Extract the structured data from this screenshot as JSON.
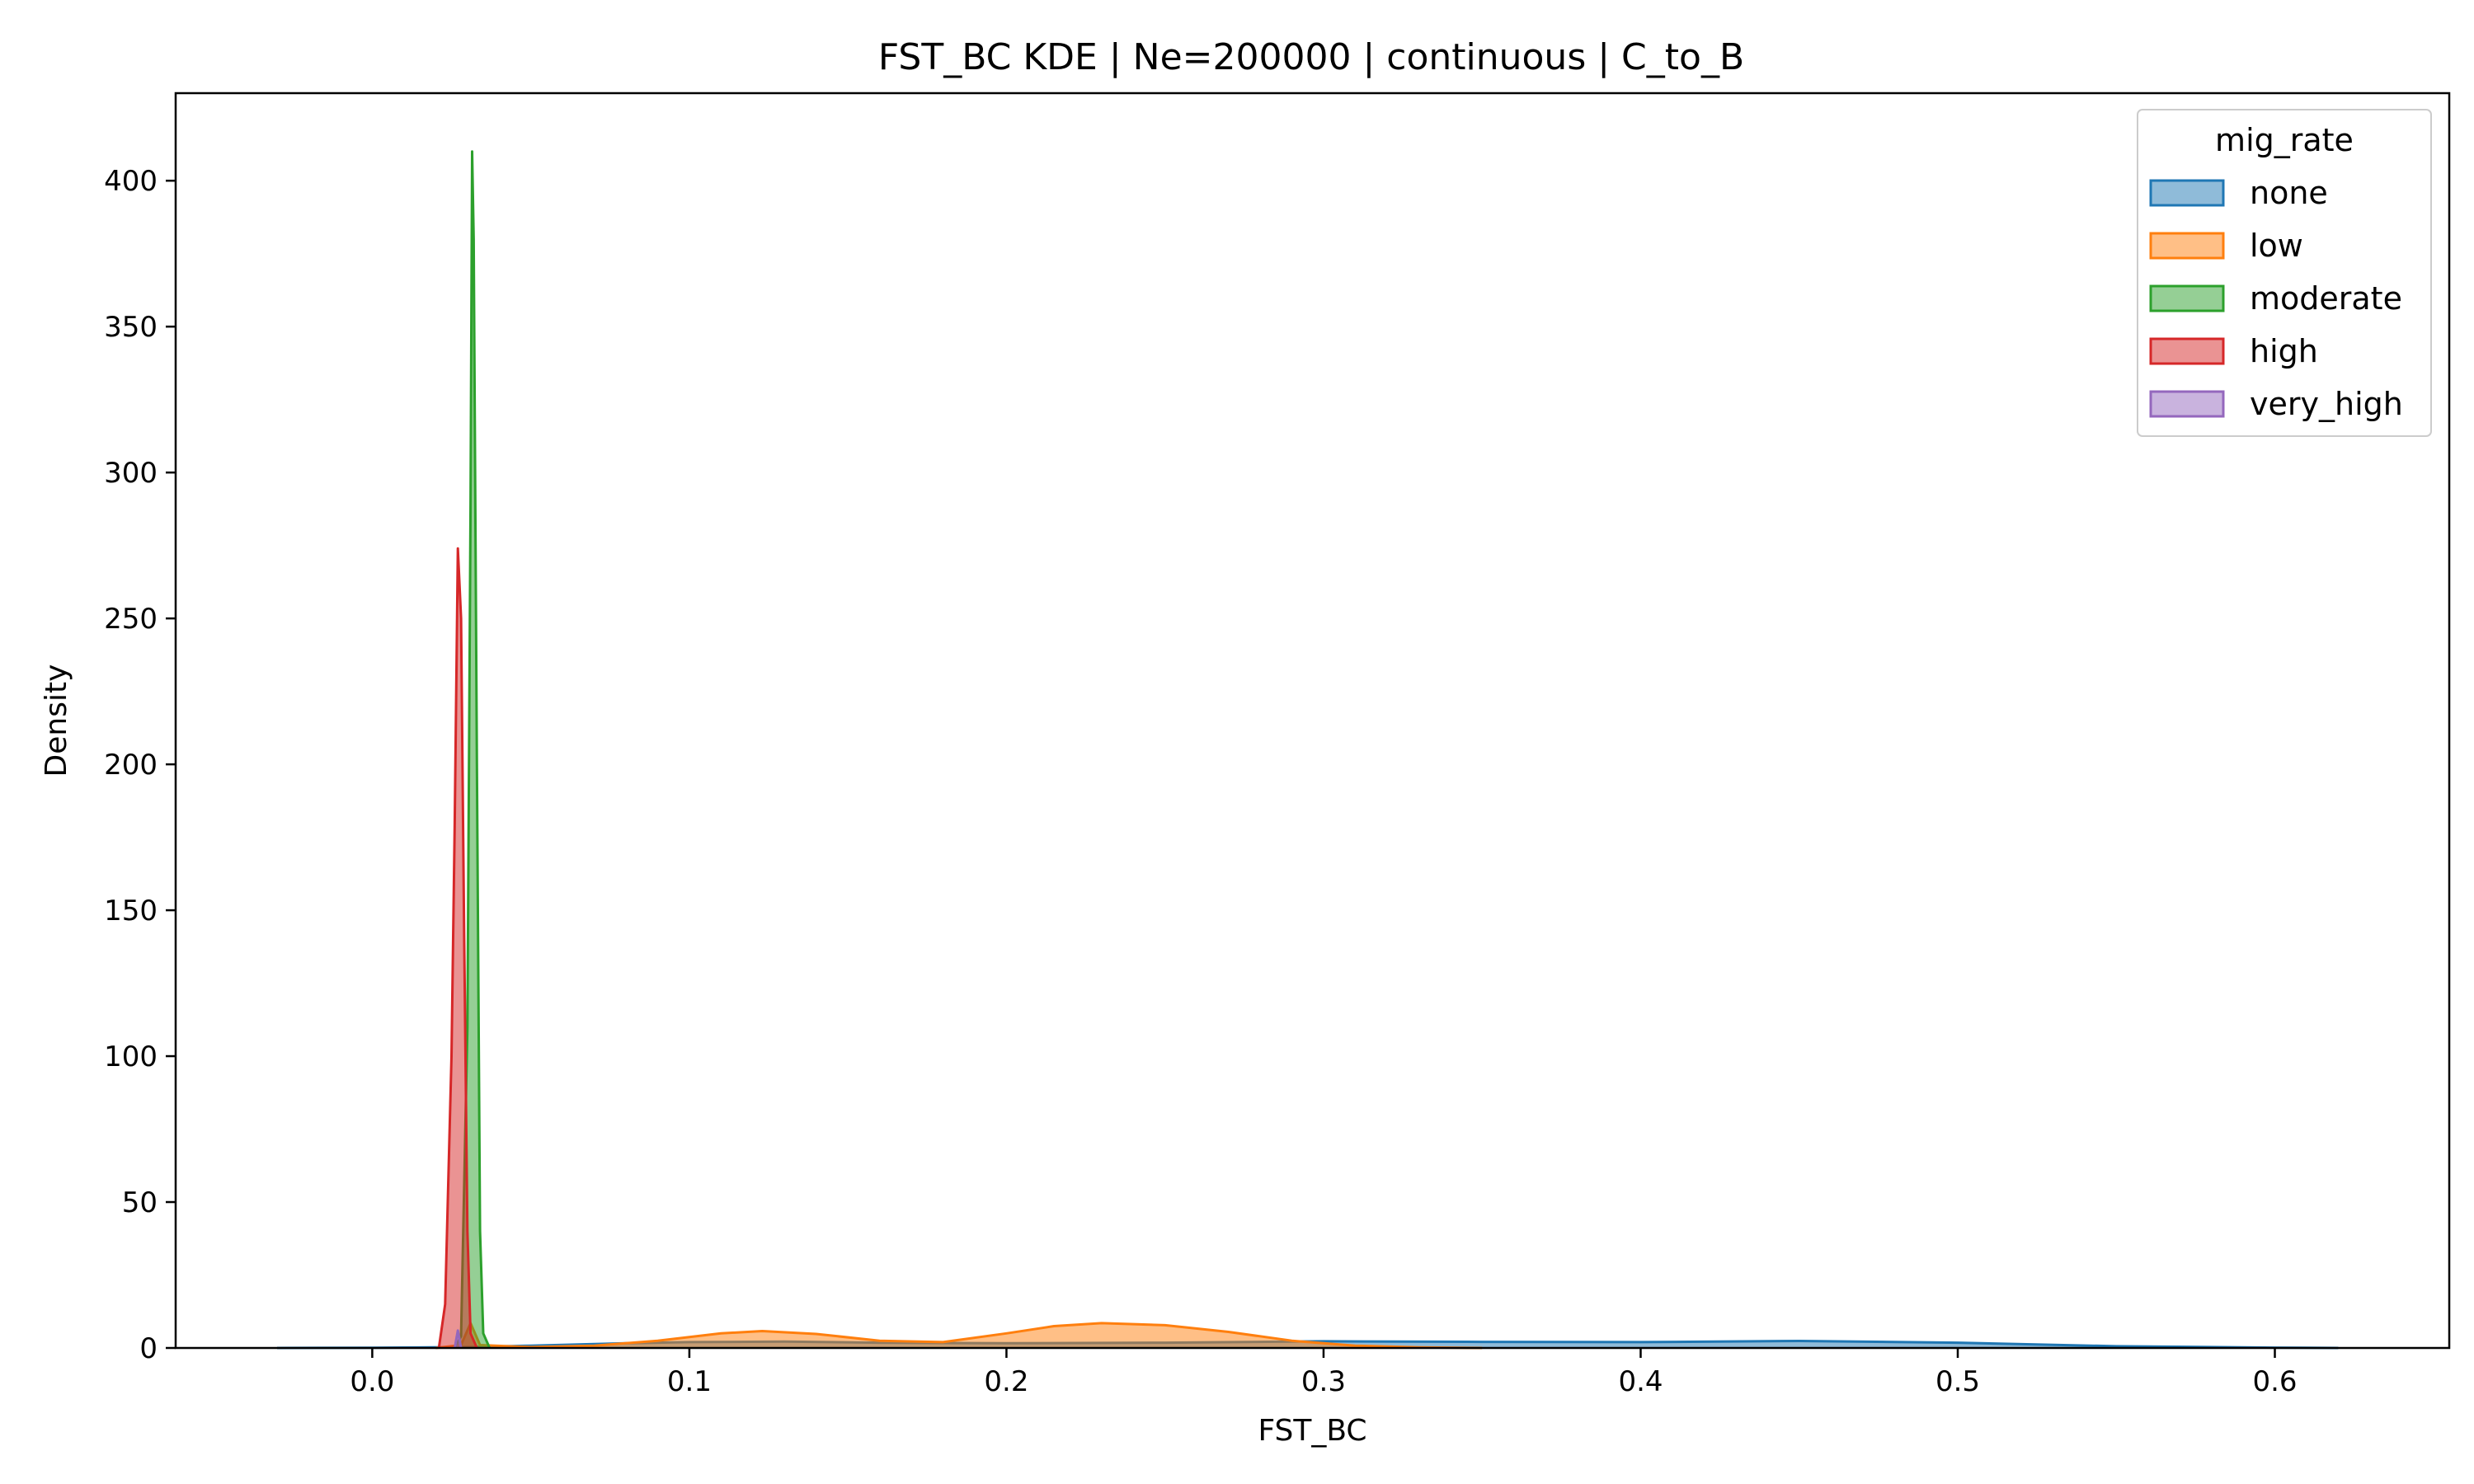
{
  "chart_data": {
    "type": "area",
    "title": "FST_BC KDE | Ne=200000 | continuous | C_to_B",
    "xlabel": "FST_BC",
    "ylabel": "Density",
    "xlim": [
      -0.062,
      0.655
    ],
    "ylim": [
      0,
      430
    ],
    "xticks": [
      0.0,
      0.1,
      0.2,
      0.3,
      0.4,
      0.5,
      0.6
    ],
    "xtick_labels": [
      "0.0",
      "0.1",
      "0.2",
      "0.3",
      "0.4",
      "0.5",
      "0.6"
    ],
    "yticks": [
      0,
      50,
      100,
      150,
      200,
      250,
      300,
      350,
      400
    ],
    "ytick_labels": [
      "0",
      "50",
      "100",
      "150",
      "200",
      "250",
      "300",
      "350",
      "400"
    ],
    "grid": false,
    "legend": {
      "title": "mig_rate",
      "placement": "top-right"
    },
    "series": [
      {
        "name": "none",
        "color": "#1f77b4",
        "points": [
          [
            -0.03,
            0
          ],
          [
            0.0,
            0.05
          ],
          [
            0.03,
            0.3
          ],
          [
            0.05,
            0.8
          ],
          [
            0.08,
            1.6
          ],
          [
            0.1,
            2.0
          ],
          [
            0.13,
            2.2
          ],
          [
            0.16,
            1.8
          ],
          [
            0.2,
            1.6
          ],
          [
            0.25,
            1.8
          ],
          [
            0.3,
            2.3
          ],
          [
            0.35,
            2.1
          ],
          [
            0.4,
            2.0
          ],
          [
            0.45,
            2.4
          ],
          [
            0.5,
            1.8
          ],
          [
            0.55,
            0.6
          ],
          [
            0.6,
            0.1
          ],
          [
            0.62,
            0
          ]
        ]
      },
      {
        "name": "low",
        "color": "#ff7f0e",
        "points": [
          [
            0.02,
            0
          ],
          [
            0.028,
            1
          ],
          [
            0.031,
            8.5
          ],
          [
            0.034,
            1
          ],
          [
            0.05,
            0.3
          ],
          [
            0.07,
            0.8
          ],
          [
            0.09,
            2.5
          ],
          [
            0.11,
            5.0
          ],
          [
            0.123,
            5.8
          ],
          [
            0.14,
            4.8
          ],
          [
            0.16,
            2.5
          ],
          [
            0.18,
            2.0
          ],
          [
            0.2,
            5.0
          ],
          [
            0.215,
            7.5
          ],
          [
            0.23,
            8.5
          ],
          [
            0.25,
            7.8
          ],
          [
            0.27,
            5.5
          ],
          [
            0.29,
            2.5
          ],
          [
            0.31,
            0.8
          ],
          [
            0.33,
            0.2
          ],
          [
            0.35,
            0
          ]
        ]
      },
      {
        "name": "moderate",
        "color": "#2ca02c",
        "points": [
          [
            0.026,
            0
          ],
          [
            0.028,
            4
          ],
          [
            0.03,
            110
          ],
          [
            0.031,
            290
          ],
          [
            0.0315,
            410
          ],
          [
            0.032,
            380
          ],
          [
            0.033,
            200
          ],
          [
            0.034,
            40
          ],
          [
            0.035,
            5
          ],
          [
            0.037,
            0
          ]
        ]
      },
      {
        "name": "high",
        "color": "#d62728",
        "points": [
          [
            0.021,
            0
          ],
          [
            0.023,
            15
          ],
          [
            0.025,
            100
          ],
          [
            0.026,
            180
          ],
          [
            0.027,
            274
          ],
          [
            0.028,
            250
          ],
          [
            0.029,
            140
          ],
          [
            0.03,
            40
          ],
          [
            0.031,
            5
          ],
          [
            0.033,
            0
          ]
        ]
      },
      {
        "name": "very_high",
        "color": "#9467bd",
        "points": [
          [
            0.026,
            0
          ],
          [
            0.027,
            6
          ],
          [
            0.028,
            0
          ]
        ]
      }
    ]
  }
}
